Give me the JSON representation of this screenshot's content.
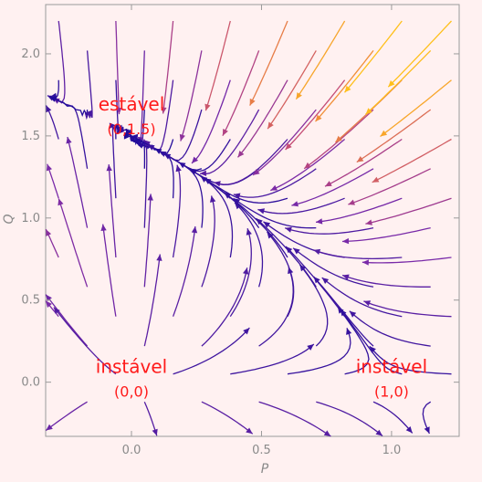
{
  "chart_data": {
    "type": "streamplot",
    "xlabel": "P",
    "ylabel": "Q",
    "xlim": [
      -0.33,
      1.26
    ],
    "ylim": [
      -0.33,
      2.3
    ],
    "x_ticks": [
      {
        "value": 0.0,
        "label": "0.0"
      },
      {
        "value": 0.5,
        "label": "0.5"
      },
      {
        "value": 1.0,
        "label": "1.0"
      }
    ],
    "y_ticks": [
      {
        "value": 0.0,
        "label": "0.0"
      },
      {
        "value": 0.5,
        "label": "0.5"
      },
      {
        "value": 1.0,
        "label": "1.0"
      },
      {
        "value": 1.5,
        "label": "1.5"
      },
      {
        "value": 2.0,
        "label": "2.0"
      }
    ],
    "grid": false,
    "colormap": [
      "#1e0a9a",
      "#7a2aa8",
      "#c24a78",
      "#f08a3a",
      "#ffc01a"
    ],
    "equilibria": [
      {
        "name": "stable",
        "P": 0,
        "Q": 1.5,
        "label": "estável",
        "coord_label": "(0,1.5)"
      },
      {
        "name": "unstable-origin",
        "P": 0,
        "Q": 0,
        "label": "instável",
        "coord_label": "(0,0)"
      },
      {
        "name": "unstable-p1",
        "P": 1,
        "Q": 0,
        "label": "instável",
        "coord_label": "(1,0)"
      }
    ]
  }
}
